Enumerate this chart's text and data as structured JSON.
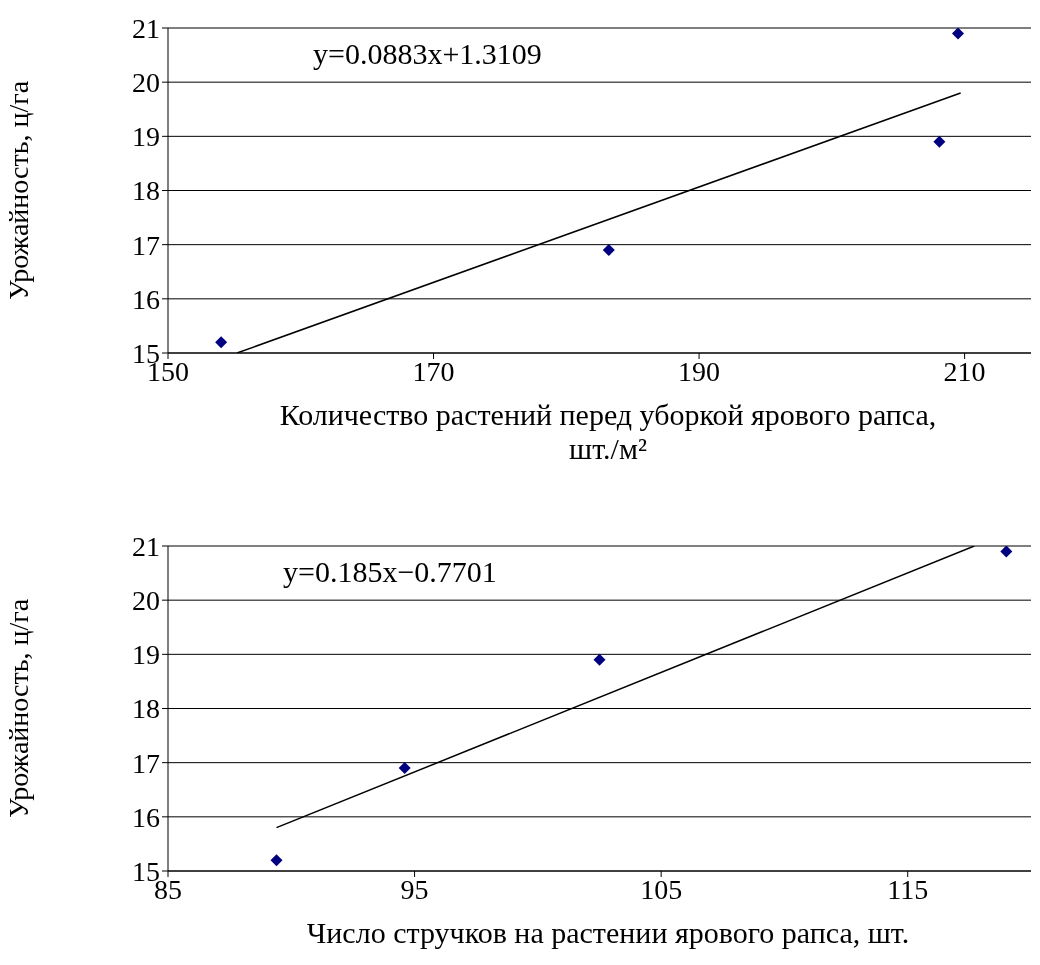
{
  "chart_data": [
    {
      "type": "scatter",
      "xlabel": "Количество растений перед уборкой ярового рапса, шт./м²",
      "ylabel": "Урожайность, ц/га",
      "annotations": [
        "y=0.0883x+1.3109"
      ],
      "xlim": [
        150,
        215
      ],
      "xticks": [
        150,
        170,
        190,
        210
      ],
      "ylim": [
        15,
        21
      ],
      "yticks": [
        15,
        16,
        17,
        18,
        19,
        20,
        21
      ],
      "grid": "y",
      "series": [
        {
          "color": "#000080",
          "marker": "diamond",
          "x": [
            154.0,
            183.2,
            208.1,
            209.5
          ],
          "values": [
            15.2,
            16.9,
            18.9,
            20.9
          ]
        },
        {
          "type": "line",
          "marker": "none",
          "color": "#000000",
          "x": [
            155.2,
            209.7
          ],
          "values": [
            15.0,
            19.8
          ]
        }
      ]
    },
    {
      "type": "scatter",
      "xlabel": "Число стручков на растении ярового рапса, шт.",
      "ylabel": "Урожайность, ц/га",
      "annotations": [
        "y=0.185x−0.7701"
      ],
      "xlim": [
        85,
        120
      ],
      "xticks": [
        85,
        95,
        105,
        115
      ],
      "ylim": [
        15,
        21
      ],
      "yticks": [
        15,
        16,
        17,
        18,
        19,
        20,
        21
      ],
      "grid": "y",
      "series": [
        {
          "color": "#000080",
          "marker": "diamond",
          "x": [
            89.4,
            94.6,
            102.5,
            119.0
          ],
          "values": [
            15.2,
            16.9,
            18.9,
            20.9
          ]
        },
        {
          "type": "line",
          "marker": "none",
          "color": "#000000",
          "x": [
            89.4,
            117.7
          ],
          "values": [
            15.8,
            21.0
          ]
        }
      ]
    }
  ]
}
